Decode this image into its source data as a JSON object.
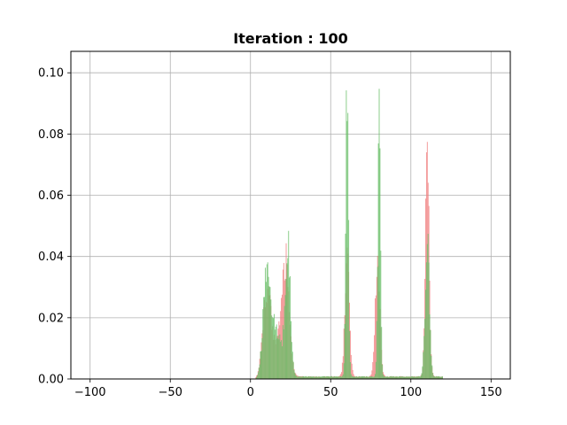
{
  "chart_data": {
    "type": "bar",
    "title": "Iteration : 100",
    "xlabel": "",
    "ylabel": "",
    "xlim": [
      -112,
      162
    ],
    "ylim": [
      0,
      0.107
    ],
    "x_ticks": [
      -100,
      -50,
      0,
      50,
      100,
      150
    ],
    "y_ticks": [
      0.0,
      0.02,
      0.04,
      0.06,
      0.08,
      0.1
    ],
    "x_tick_labels": [
      "−100",
      "−50",
      "0",
      "50",
      "100",
      "150"
    ],
    "y_tick_labels": [
      "0.00",
      "0.02",
      "0.04",
      "0.06",
      "0.08",
      "0.10"
    ],
    "grid": true,
    "legend": "none",
    "series": [
      {
        "color": "#f08080",
        "peaks": [
          {
            "center": 10,
            "height": 0.03,
            "width": 2.5
          },
          {
            "center": 19,
            "height": 0.017,
            "width": 3.5
          },
          {
            "center": 22,
            "height": 0.027,
            "width": 2.0
          },
          {
            "center": 60,
            "height": 0.04,
            "width": 1.4
          },
          {
            "center": 79,
            "height": 0.04,
            "width": 1.4
          },
          {
            "center": 110,
            "height": 0.077,
            "width": 1.2
          }
        ]
      },
      {
        "color": "#6abf69",
        "peaks": [
          {
            "center": 10,
            "height": 0.035,
            "width": 2.3
          },
          {
            "center": 16,
            "height": 0.015,
            "width": 3.5
          },
          {
            "center": 23,
            "height": 0.045,
            "width": 1.6
          },
          {
            "center": 60,
            "height": 0.102,
            "width": 0.8
          },
          {
            "center": 80,
            "height": 0.095,
            "width": 0.8
          },
          {
            "center": 110,
            "height": 0.045,
            "width": 1.3
          }
        ]
      }
    ]
  }
}
